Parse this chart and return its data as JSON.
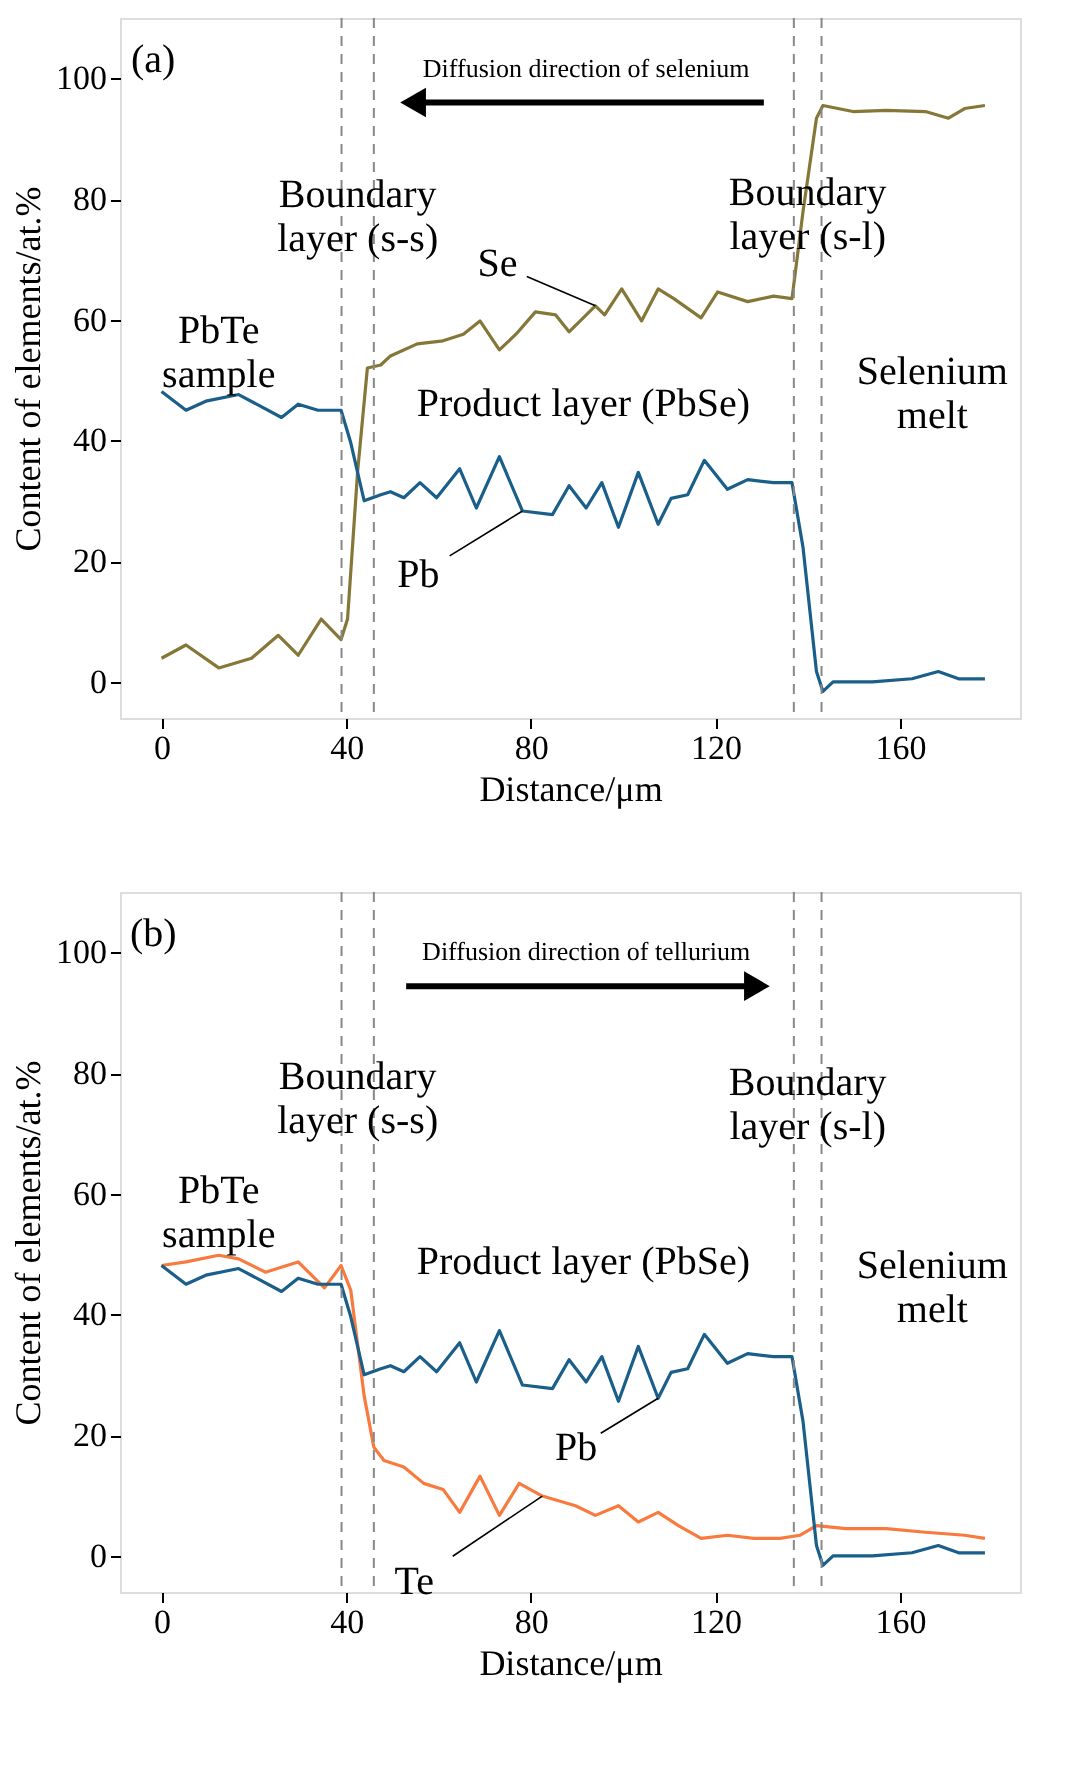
{
  "chart_data": [
    {
      "type": "line",
      "xlabel": "Distance/μm",
      "ylabel": "Content of elements/at.%",
      "xlim": [
        -9,
        186
      ],
      "ylim": [
        -6,
        110
      ],
      "xticks": [
        0,
        40,
        80,
        120,
        160
      ],
      "yticks": [
        0,
        20,
        40,
        60,
        80,
        100
      ],
      "grid": false,
      "series": [
        {
          "name": "Se",
          "color": "#857737",
          "x": [
            0,
            5.3,
            12.4,
            19.5,
            25.3,
            29.6,
            34.6,
            38.9,
            40.3,
            42.5,
            44.6,
            47.5,
            49.6,
            55.4,
            61,
            65.4,
            69,
            73.2,
            76.8,
            81,
            85.4,
            88.3,
            94,
            96,
            99.7,
            104,
            107.6,
            111,
            116.9,
            120.5,
            127,
            132.6,
            136.6,
            139,
            141.9,
            143.3,
            149.8,
            157,
            165.5,
            170.5,
            174,
            178.4
          ],
          "values": [
            3.9,
            6.1,
            2.3,
            3.9,
            7.7,
            4.4,
            10.4,
            7,
            10.4,
            35,
            52,
            52.5,
            54,
            56,
            56.5,
            57.6,
            59.8,
            55,
            57.6,
            61.3,
            60.8,
            58,
            62.3,
            60.8,
            65.1,
            59.8,
            65.1,
            63.5,
            60.3,
            64.6,
            63,
            63.9,
            63.5,
            78,
            93.4,
            95.5,
            94.5,
            94.7,
            94.5,
            93.4,
            95,
            95.5
          ]
        },
        {
          "name": "Pb",
          "color": "#1a5e8a",
          "x": [
            0,
            5.3,
            9.6,
            16.7,
            26,
            29.6,
            33.9,
            38.9,
            41,
            43.9,
            47.5,
            49.6,
            52.5,
            56,
            59.6,
            64.6,
            68.2,
            73.2,
            78.2,
            84.7,
            88.3,
            92,
            95.4,
            99,
            103.3,
            107.6,
            110.4,
            114,
            117.6,
            122.6,
            127,
            132.6,
            136.6,
            139,
            141.9,
            143.3,
            145.5,
            154,
            162.6,
            168.3,
            172.7,
            178.4
          ],
          "values": [
            48.1,
            45,
            46.5,
            47.6,
            43.8,
            46,
            45,
            45,
            39.6,
            30,
            31,
            31.5,
            30.5,
            33,
            30.5,
            35.3,
            28.8,
            37.3,
            28.3,
            27.7,
            32.5,
            28.8,
            33,
            25.6,
            34.7,
            26.1,
            30.4,
            31,
            36.7,
            31.9,
            33.5,
            33,
            33,
            22.2,
            1.7,
            -1.6,
            0,
            0,
            0.5,
            1.7,
            0.5,
            0.5
          ]
        }
      ],
      "ref_lines": [
        {
          "axis": "x",
          "value": 39,
          "color": "#888888",
          "line_style": "dashed"
        },
        {
          "axis": "x",
          "value": 46,
          "color": "#888888",
          "line_style": "dashed"
        },
        {
          "axis": "x",
          "value": 137,
          "color": "#888888",
          "line_style": "dashed"
        },
        {
          "axis": "x",
          "value": 143,
          "color": "#888888",
          "line_style": "dashed"
        }
      ],
      "annotations": [
        "(a)",
        "Diffusion direction of selenium",
        "Boundary\nlayer (s-s)",
        "PbTe\nsample",
        "Product layer (PbSe)",
        "Boundary\nlayer (s-l)",
        "Selenium\nmelt"
      ]
    },
    {
      "type": "line",
      "xlabel": "Distance/μm",
      "ylabel": "Content of elements/at.%",
      "xlim": [
        -9,
        186
      ],
      "ylim": [
        -6,
        110
      ],
      "xticks": [
        0,
        40,
        80,
        120,
        160
      ],
      "yticks": [
        0,
        20,
        40,
        60,
        80,
        100
      ],
      "grid": false,
      "series": [
        {
          "name": "Te",
          "color": "#f97a3e",
          "x": [
            0,
            5.3,
            12.4,
            16.7,
            22.5,
            29.6,
            35.3,
            38.9,
            41,
            43.9,
            46,
            48.2,
            52.5,
            56.8,
            61,
            64.6,
            69,
            73.2,
            77.5,
            82.5,
            89.7,
            94,
            99,
            103.3,
            107.6,
            112,
            116.9,
            122.6,
            128.3,
            134,
            138.3,
            141.9,
            148.3,
            157,
            165.5,
            174,
            178.4
          ],
          "values": [
            48.1,
            48.7,
            49.8,
            49.2,
            47,
            48.7,
            44.4,
            48.1,
            44,
            26.5,
            18,
            15.8,
            14.7,
            12,
            11,
            7.2,
            13.2,
            6.7,
            12,
            9.9,
            8.3,
            6.7,
            8.3,
            5.6,
            7.2,
            5,
            2.9,
            3.4,
            2.9,
            2.9,
            3.4,
            5,
            4.5,
            4.5,
            3.9,
            3.4,
            2.9
          ]
        },
        {
          "name": "Pb",
          "color": "#1a5e8a",
          "x": [
            0,
            5.3,
            9.6,
            16.7,
            26,
            29.6,
            33.9,
            38.9,
            41,
            43.9,
            47.5,
            49.6,
            52.5,
            56,
            59.6,
            64.6,
            68.2,
            73.2,
            78.2,
            84.7,
            88.3,
            92,
            95.4,
            99,
            103.3,
            107.6,
            110.4,
            114,
            117.6,
            122.6,
            127,
            132.6,
            136.6,
            139,
            141.9,
            143.3,
            145.5,
            154,
            162.6,
            168.3,
            172.7,
            178.4
          ],
          "values": [
            48.1,
            45,
            46.5,
            47.6,
            43.8,
            46,
            45,
            45,
            39.6,
            30,
            31,
            31.5,
            30.5,
            33,
            30.5,
            35.3,
            28.8,
            37.3,
            28.3,
            27.7,
            32.5,
            28.8,
            33,
            25.6,
            34.7,
            26.1,
            30.4,
            31,
            36.7,
            31.9,
            33.5,
            33,
            33,
            22.2,
            1.7,
            -1.6,
            0,
            0,
            0.5,
            1.7,
            0.5,
            0.5
          ]
        }
      ],
      "ref_lines": [
        {
          "axis": "x",
          "value": 39,
          "color": "#888888",
          "line_style": "dashed"
        },
        {
          "axis": "x",
          "value": 46,
          "color": "#888888",
          "line_style": "dashed"
        },
        {
          "axis": "x",
          "value": 137,
          "color": "#888888",
          "line_style": "dashed"
        },
        {
          "axis": "x",
          "value": 143,
          "color": "#888888",
          "line_style": "dashed"
        }
      ],
      "annotations": [
        "(b)",
        "Diffusion direction of tellurium",
        "Boundary\nlayer (s-s)",
        "PbTe\nsample",
        "Product layer (PbSe)",
        "Boundary\nlayer (s-l)",
        "Selenium\nmelt"
      ]
    }
  ]
}
